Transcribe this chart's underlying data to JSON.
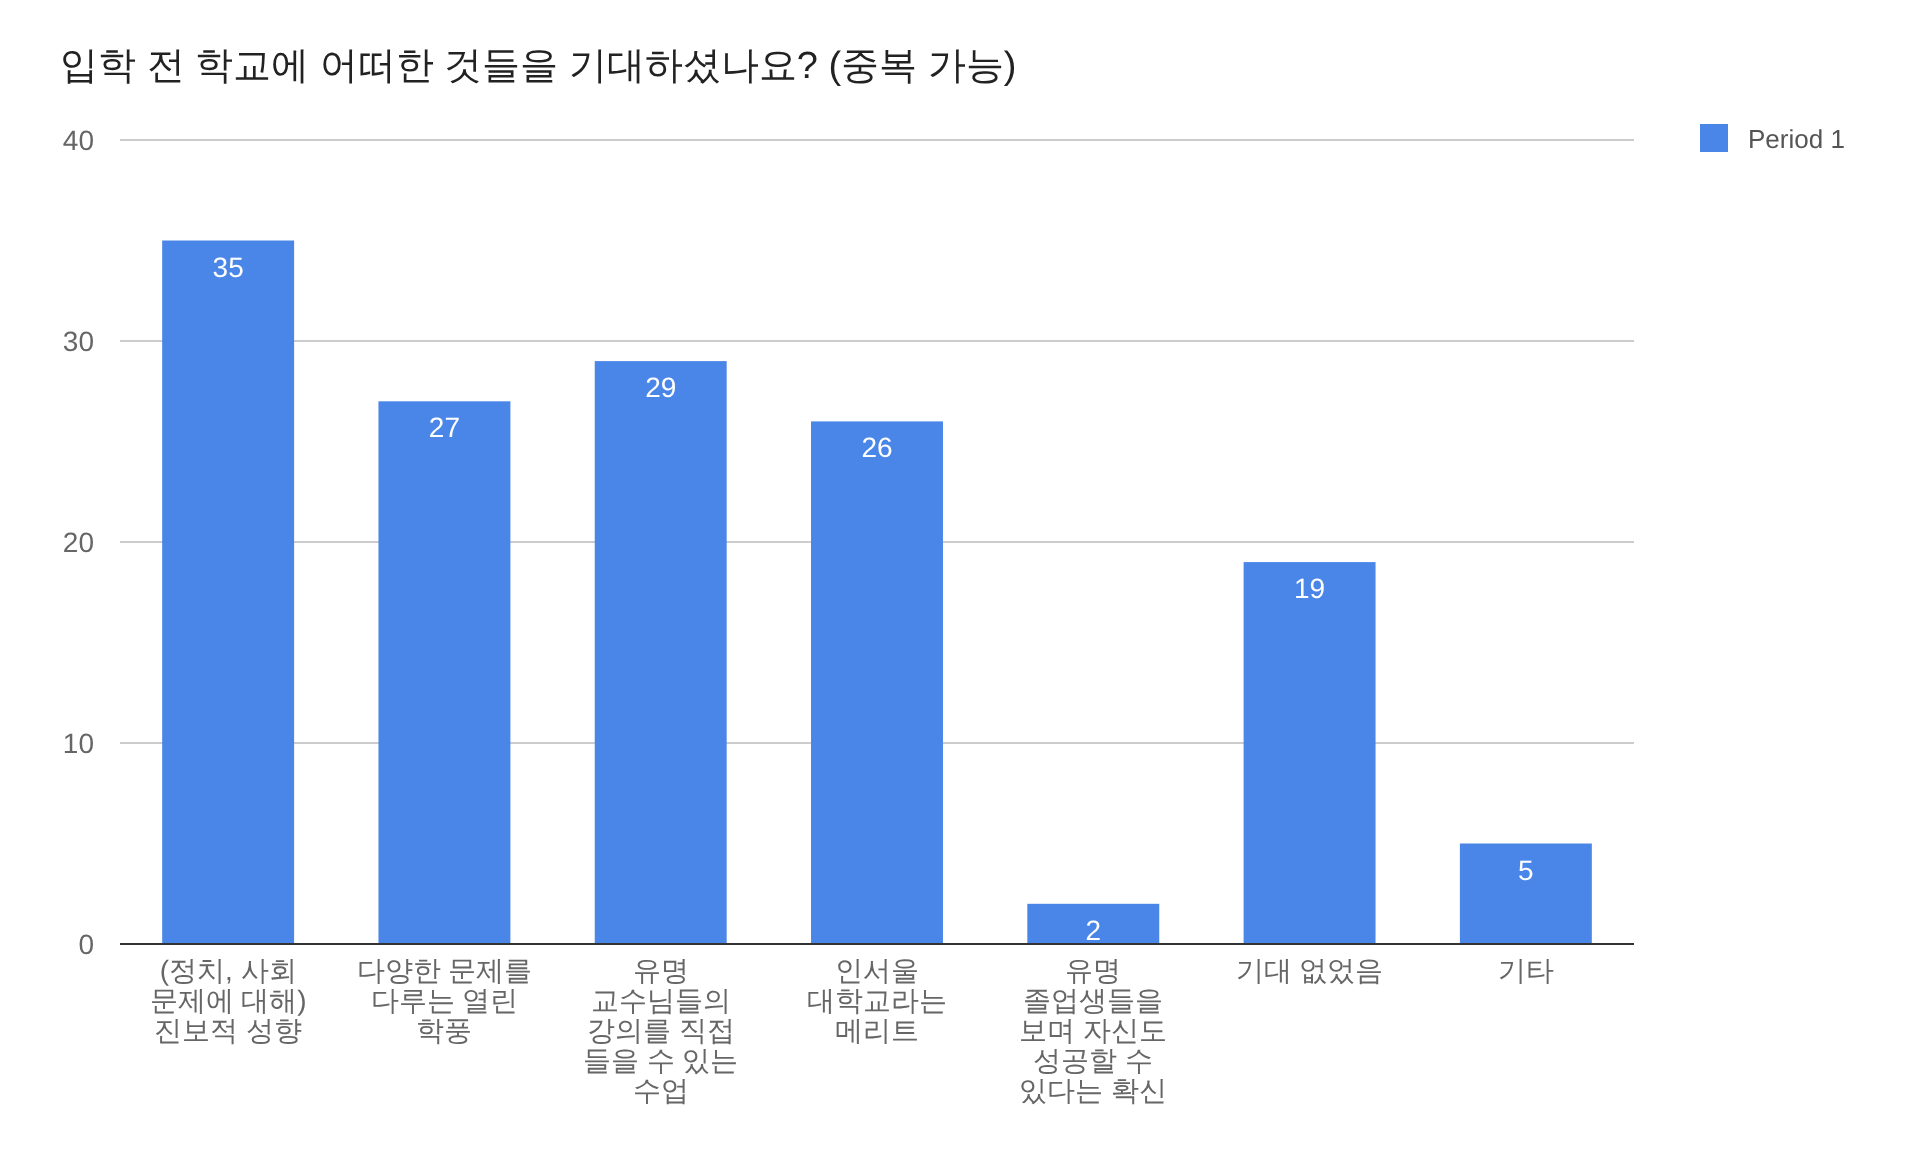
{
  "chart_data": {
    "type": "bar",
    "title": "입학 전 학교에 어떠한 것들을 기대하셨나요? (중복 가능)",
    "categories": [
      "(정치, 사회 문제에 대해) 진보적 성향",
      "다양한 문제를 다루는 열린 학풍",
      "유명 교수님들의 강의를 직접 들을 수 있는 수업",
      "인서울 대학교라는 메리트",
      "유명 졸업생들을 보며 자신도 성공할 수 있다는 확신",
      "기대 없었음",
      "기타"
    ],
    "series": [
      {
        "name": "Period 1",
        "color": "#4a86e8",
        "values": [
          35,
          27,
          29,
          26,
          2,
          19,
          5
        ]
      }
    ],
    "ylim": [
      0,
      40
    ],
    "yticks": [
      0,
      10,
      20,
      30,
      40
    ],
    "grid": "y",
    "legend": "top right",
    "data_labels": true
  }
}
